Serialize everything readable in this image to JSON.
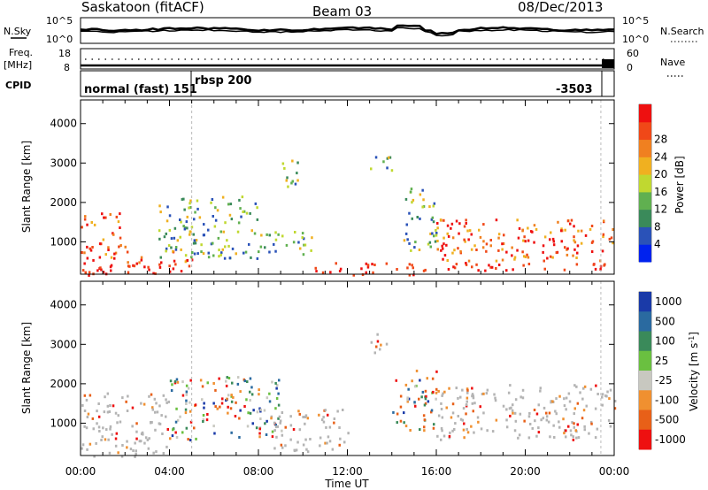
{
  "header": {
    "station": "Saskatoon (fitACF)",
    "beam": "Beam 03",
    "date": "08/Dec/2013"
  },
  "noise_panel": {
    "left_label": "N.Sky",
    "right_label": "N.Search",
    "left_ticks": [
      "10^5",
      "10^0"
    ],
    "right_ticks": [
      "10^5",
      "10^0"
    ]
  },
  "freq_panel": {
    "left_label_1": "Freq.",
    "left_label_2": "[MHz]",
    "right_label": "Nave",
    "left_ticks": [
      "18",
      "8"
    ],
    "right_ticks": [
      "60",
      "0"
    ]
  },
  "cpid_panel": {
    "label": "CPID",
    "segments": [
      "normal (fast) 151",
      "rbsp 200",
      "-3503"
    ]
  },
  "colors": {
    "power_scale": [
      "#0022ee",
      "#2a52b8",
      "#3a8a5a",
      "#60b050",
      "#c0d830",
      "#f0b020",
      "#f08020",
      "#f04818",
      "#ee1010"
    ],
    "velocity_scale": [
      "#1a3aa8",
      "#2a6aa0",
      "#3a8a5a",
      "#6ac040",
      "#c8c8c0",
      "#f09030",
      "#e86018",
      "#ee1010"
    ],
    "ground_scatter": "#b4b4b4",
    "axis": "#000000"
  },
  "chart_data": [
    {
      "type": "heatmap",
      "title": "",
      "parameter": "Power",
      "xlabel": "Time UT",
      "ylabel": "Slant Range [km]",
      "x_ticks": [
        "00:00",
        "04:00",
        "08:00",
        "12:00",
        "16:00",
        "20:00",
        "00:00"
      ],
      "y_ticks": [
        1000,
        2000,
        3000,
        4000
      ],
      "ylim": [
        180,
        4600
      ],
      "xlim_hours": [
        0,
        24
      ],
      "colorbar": {
        "label": "Power [dB]",
        "ticks": [
          4,
          8,
          12,
          16,
          20,
          24,
          28
        ]
      },
      "scatter_regions": [
        {
          "t": [
            0.0,
            2.0
          ],
          "r": [
            180,
            1800
          ],
          "level": "high"
        },
        {
          "t": [
            2.0,
            5.0
          ],
          "r": [
            180,
            800
          ],
          "level": "high"
        },
        {
          "t": [
            3.5,
            8.0
          ],
          "r": [
            600,
            2200
          ],
          "level": "mid"
        },
        {
          "t": [
            8.0,
            10.5
          ],
          "r": [
            700,
            1300
          ],
          "level": "mid"
        },
        {
          "t": [
            9.0,
            10.0
          ],
          "r": [
            2400,
            3100
          ],
          "level": "mid"
        },
        {
          "t": [
            10.5,
            15.5
          ],
          "r": [
            180,
            500
          ],
          "level": "high"
        },
        {
          "t": [
            13.0,
            14.0
          ],
          "r": [
            2800,
            3300
          ],
          "level": "mid"
        },
        {
          "t": [
            14.5,
            16.0
          ],
          "r": [
            800,
            2400
          ],
          "level": "mid"
        },
        {
          "t": [
            16.0,
            24.0
          ],
          "r": [
            300,
            1600
          ],
          "level": "high"
        }
      ]
    },
    {
      "type": "heatmap",
      "title": "",
      "parameter": "Velocity",
      "xlabel": "Time UT",
      "ylabel": "Slant Range [km]",
      "x_ticks": [
        "00:00",
        "04:00",
        "08:00",
        "12:00",
        "16:00",
        "20:00",
        "00:00"
      ],
      "y_ticks": [
        1000,
        2000,
        3000,
        4000
      ],
      "ylim": [
        180,
        4600
      ],
      "xlim_hours": [
        0,
        24
      ],
      "colorbar": {
        "label": "Velocity [m s",
        "label_sup": "-1",
        "label_end": "]",
        "ticks": [
          1000,
          500,
          100,
          25,
          -25,
          -100,
          -500,
          -1000
        ]
      },
      "scatter_regions": [
        {
          "t": [
            0.0,
            4.0
          ],
          "r": [
            180,
            1800
          ],
          "level": "ground"
        },
        {
          "t": [
            4.0,
            9.0
          ],
          "r": [
            600,
            2200
          ],
          "level": "mixed"
        },
        {
          "t": [
            8.5,
            12.0
          ],
          "r": [
            300,
            1400
          ],
          "level": "ground"
        },
        {
          "t": [
            13.0,
            14.0
          ],
          "r": [
            2800,
            3300
          ],
          "level": "ground"
        },
        {
          "t": [
            14.0,
            16.0
          ],
          "r": [
            800,
            2400
          ],
          "level": "mixed"
        },
        {
          "t": [
            16.0,
            24.0
          ],
          "r": [
            600,
            2000
          ],
          "level": "ground"
        }
      ]
    }
  ]
}
